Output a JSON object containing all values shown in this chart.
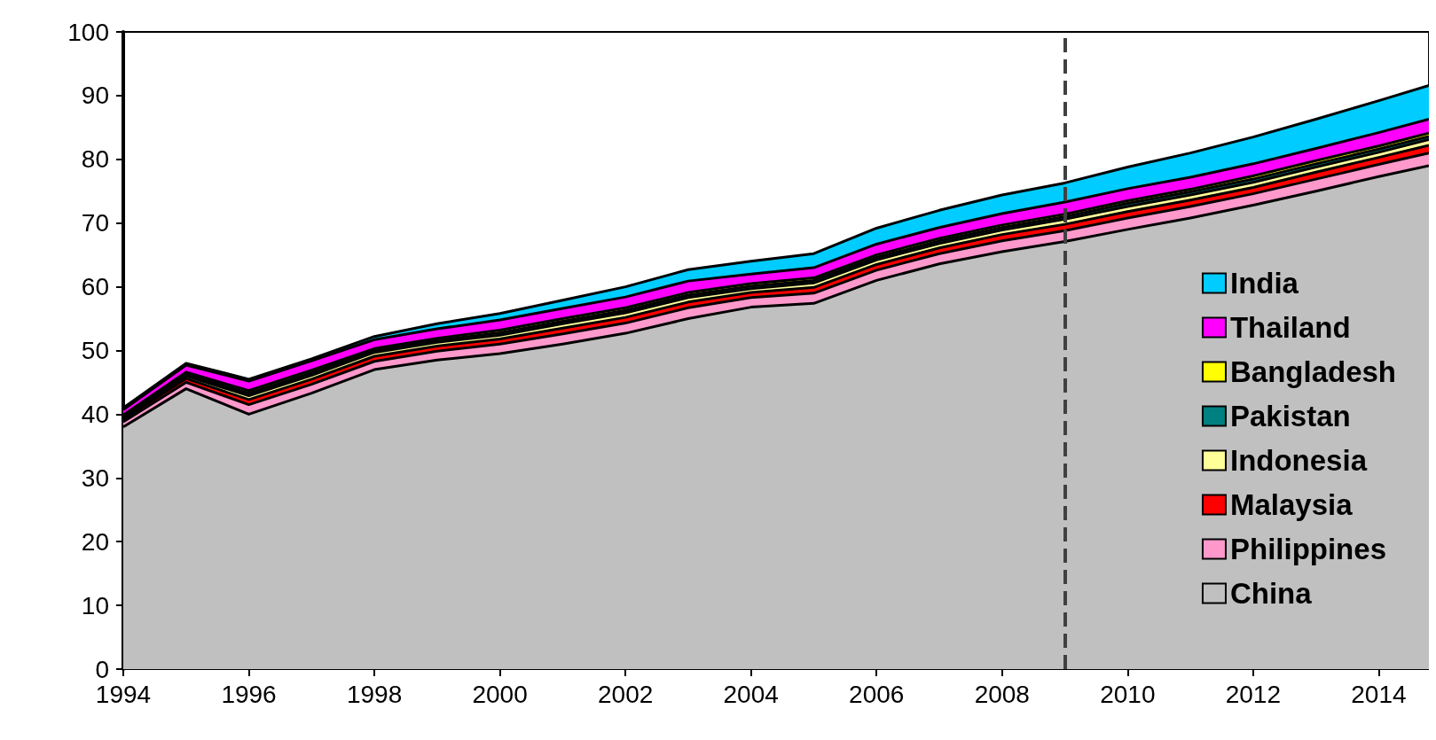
{
  "chart_data": {
    "type": "area",
    "stacked": true,
    "x": [
      1994,
      1995,
      1996,
      1997,
      1998,
      1999,
      2000,
      2001,
      2002,
      2003,
      2004,
      2005,
      2006,
      2007,
      2008,
      2009,
      2010,
      2011,
      2012,
      2013,
      2014,
      2014.8
    ],
    "series": [
      {
        "name": "China",
        "color": "#c0c0c0",
        "values": [
          38,
          44,
          40,
          43.3,
          47,
          48.5,
          49.5,
          51,
          52.7,
          55,
          56.8,
          57.4,
          61,
          63.6,
          65.5,
          67.1,
          69,
          70.8,
          72.8,
          75,
          77.3,
          79
        ]
      },
      {
        "name": "Philippines",
        "color": "#ff99cc",
        "values": [
          0.8,
          1.0,
          1.5,
          1.4,
          1.3,
          1.4,
          1.5,
          1.6,
          1.6,
          1.7,
          1.5,
          1.6,
          1.6,
          1.6,
          1.7,
          1.7,
          1.8,
          1.8,
          1.8,
          1.9,
          1.9,
          2.0
        ]
      },
      {
        "name": "Malaysia",
        "color": "#ff0000",
        "values": [
          0.4,
          0.6,
          0.8,
          0.8,
          0.8,
          0.8,
          0.8,
          0.9,
          0.9,
          0.9,
          0.8,
          0.9,
          0.9,
          0.9,
          1.0,
          1.0,
          1.0,
          1.0,
          1.0,
          1.1,
          1.1,
          1.2
        ]
      },
      {
        "name": "Indonesia",
        "color": "#ffff99",
        "values": [
          0.3,
          0.4,
          0.6,
          0.6,
          0.6,
          0.6,
          0.6,
          0.7,
          0.7,
          0.7,
          0.6,
          0.7,
          0.7,
          0.7,
          0.7,
          0.8,
          0.8,
          0.8,
          0.8,
          0.8,
          0.8,
          0.9
        ]
      },
      {
        "name": "Pakistan",
        "color": "#008080",
        "values": [
          0.2,
          0.3,
          0.4,
          0.4,
          0.3,
          0.3,
          0.4,
          0.4,
          0.4,
          0.4,
          0.4,
          0.4,
          0.4,
          0.4,
          0.4,
          0.4,
          0.5,
          0.5,
          0.5,
          0.5,
          0.5,
          0.5
        ]
      },
      {
        "name": "Bangladesh",
        "color": "#ffff00",
        "values": [
          0.2,
          0.3,
          0.4,
          0.4,
          0.3,
          0.3,
          0.4,
          0.4,
          0.4,
          0.4,
          0.4,
          0.4,
          0.4,
          0.4,
          0.4,
          0.4,
          0.4,
          0.4,
          0.5,
          0.5,
          0.5,
          0.5
        ]
      },
      {
        "name": "Thailand",
        "color": "#ff00ff",
        "values": [
          0.8,
          1.1,
          1.5,
          1.5,
          1.4,
          1.5,
          1.6,
          1.6,
          1.7,
          1.8,
          1.5,
          1.6,
          1.7,
          1.7,
          1.8,
          1.9,
          1.9,
          1.9,
          1.9,
          1.9,
          2.1,
          2.2
        ]
      },
      {
        "name": "India",
        "color": "#00ccff",
        "values": [
          0.3,
          0.3,
          0.3,
          0.3,
          0.5,
          0.8,
          1.0,
          1.3,
          1.6,
          1.8,
          2.0,
          2.2,
          2.5,
          2.7,
          2.9,
          3.0,
          3.4,
          3.8,
          4.2,
          4.6,
          5.0,
          5.3
        ]
      }
    ],
    "xlim": [
      1994,
      2014.8
    ],
    "xticks": [
      1994,
      1996,
      1998,
      2000,
      2002,
      2004,
      2006,
      2008,
      2010,
      2012,
      2014
    ],
    "ylim": [
      0,
      100
    ],
    "yticks": [
      0,
      10,
      20,
      30,
      40,
      50,
      60,
      70,
      80,
      90,
      100
    ],
    "ref_lines": [
      {
        "axis": "x",
        "value": 2009,
        "color": "#404040",
        "line_style": "dashed"
      }
    ],
    "legend": "right",
    "grid": false,
    "marker": "none",
    "line_style": "solid"
  }
}
